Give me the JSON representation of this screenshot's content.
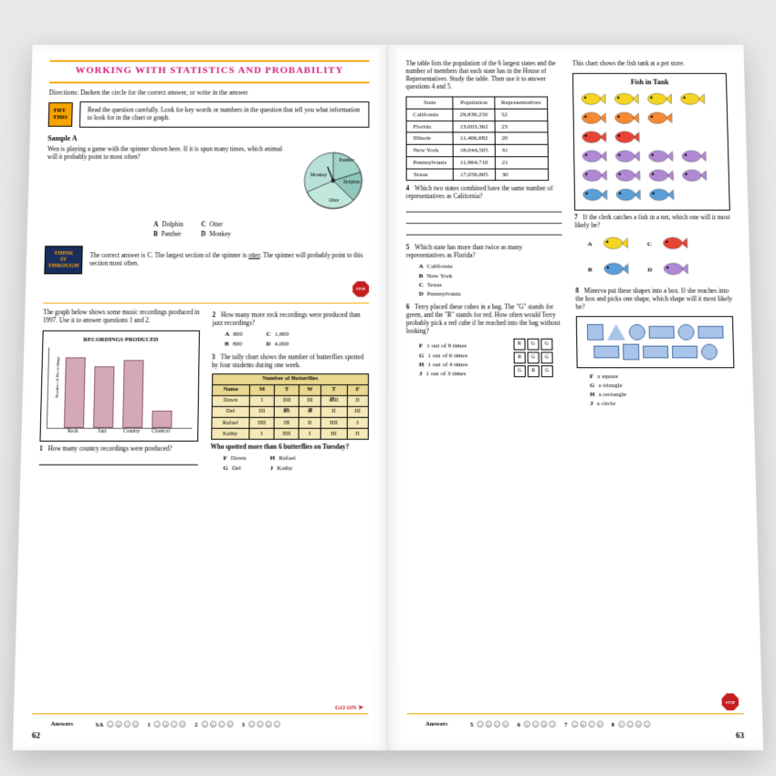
{
  "left": {
    "title": "WORKING WITH STATISTICS AND PROBABILITY",
    "directions": "Directions: Darken the circle for the correct answer, or write in the answer",
    "try_label": "TRY\nTHIS",
    "try_text": "Read the question carefully. Look for key words or numbers in the question that tell you what information to look for in the chart or graph.",
    "sample_label": "Sample A",
    "sample_text": "Wen is playing a game with the spinner shown here. If it is spun many times, which animal will it probably point to most often?",
    "spinner": {
      "colors": [
        "#b8e0d8",
        "#a0d4c8",
        "#90c8bc",
        "#c0e8dc"
      ],
      "labels": [
        "Panther",
        "Dolphin",
        "Otter",
        "Monkey"
      ]
    },
    "sample_opts": {
      "A": "Dolphin",
      "B": "Panther",
      "C": "Otter",
      "D": "Monkey"
    },
    "think_label": "THINK\nIT\nTHROUGH",
    "think_text": "The correct answer is C. The largest section of the spinner is otter. The spinner will probably point to this section most often.",
    "graph_intro": "The graph below shows some music recordings produced in 1997. Use it to answer questions 1 and 2.",
    "chart": {
      "title": "RECORDINGS PRODUCED",
      "y_label": "Number of Recordings",
      "categories": [
        "Rock",
        "Jazz",
        "Country",
        "Classical"
      ],
      "values": [
        4600,
        4000,
        4400,
        1100
      ],
      "ymax": 5000,
      "bar_color": "#d4a8b8"
    },
    "q1": "How many country recordings were produced?",
    "q2": "How many more rock recordings were produced than jazz recordings?",
    "q2_opts": {
      "A": "600",
      "B": "800",
      "C": "1,600",
      "D": "4,000"
    },
    "q3_intro": "The tally chart shows the number of butterflies spotted by four students during one week.",
    "tally": {
      "title": "Number of Butterflies",
      "cols": [
        "Name",
        "M",
        "T",
        "W",
        "T",
        "F"
      ],
      "rows": [
        [
          "Dawn",
          "I",
          "IIII",
          "III",
          "𝍸II",
          "II"
        ],
        [
          "Del",
          "III",
          "𝍸I",
          "𝍸",
          "II",
          "III"
        ],
        [
          "Rafael",
          "IIII",
          "III",
          "II",
          "IIII",
          "I"
        ],
        [
          "Kathy",
          "I",
          "IIII",
          "I",
          "III",
          "II"
        ]
      ]
    },
    "q3": "Who spotted more than 6 butterflies on Tuesday?",
    "q3_opts": {
      "F": "Dawn",
      "G": "Del",
      "H": "Rafael",
      "J": "Kathy"
    },
    "go_on": "GO ON ➤",
    "answers_label": "Answers",
    "answers": [
      "SA",
      "1",
      "2",
      "3"
    ],
    "page_num": "62"
  },
  "right": {
    "intro": "The table lists the population of the 6 largest states and the number of members that each state has in the House of Representatives. Study the table. Then use it to answer questions 4 and 5.",
    "table": {
      "cols": [
        "State",
        "Population",
        "Representatives"
      ],
      "rows": [
        [
          "California",
          "29,839,250",
          "52"
        ],
        [
          "Florida",
          "13,003,362",
          "23"
        ],
        [
          "Illinois",
          "11,466,682",
          "20"
        ],
        [
          "New York",
          "18,044,505",
          "31"
        ],
        [
          "Pennsylvania",
          "11,964,710",
          "21"
        ],
        [
          "Texas",
          "17,059,805",
          "30"
        ]
      ]
    },
    "q4": "Which two states combined have the same number of representatives as California?",
    "q5": "Which state has more than twice as many representatives as Florida?",
    "q5_opts": {
      "A": "California",
      "B": "New York",
      "C": "Texas",
      "D": "Pennsylvania"
    },
    "q6": "Terry placed these cubes in a bag. The \"G\" stands for green, and the \"R\" stands for red. How often would Terry probably pick a red cube if he reached into the bag without looking?",
    "q6_opts": {
      "F": "1 out of 9 times",
      "G": "1 out of 6 times",
      "H": "1 out of 4 times",
      "J": "1 out of 3 times"
    },
    "cubes": [
      "R",
      "G",
      "G",
      "R",
      "G",
      "G",
      "G",
      "R",
      "G"
    ],
    "fish_intro": "This chart shows the fish tank at a pet store.",
    "fish_title": "Fish in Tank",
    "fish_rows": [
      [
        "yellow",
        "yellow",
        "yellow",
        "yellow"
      ],
      [
        "orange",
        "orange",
        "orange"
      ],
      [
        "red",
        "red"
      ],
      [
        "purple",
        "purple",
        "purple",
        "purple"
      ],
      [
        "purple",
        "purple",
        "purple",
        "purple"
      ],
      [
        "blue",
        "blue",
        "blue"
      ]
    ],
    "fish_colors": {
      "yellow": "#f5d422",
      "orange": "#f58934",
      "red": "#e84434",
      "purple": "#b088d4",
      "blue": "#5c9ed8"
    },
    "q7": "If the clerk catches a fish in a net, which one will it most likely be?",
    "q7_opts": [
      "A",
      "B",
      "C",
      "D"
    ],
    "q7_opt_colors": [
      "#f5d422",
      "#5c9ed8",
      "#e84434",
      "#b088d4"
    ],
    "q8": "Minerva put these shapes into a box. If she reaches into the box and picks one shape, which shape will it most likely be?",
    "q8_shapes": [
      "sq",
      "tri",
      "circ",
      "rect",
      "circ",
      "rect",
      "rect",
      "sq",
      "rect",
      "rect",
      "circ"
    ],
    "q8_opts": {
      "F": "a square",
      "G": "a triangle",
      "H": "a rectangle",
      "J": "a circle"
    },
    "answers_label": "Answers",
    "answers": [
      "5",
      "6",
      "7",
      "8"
    ],
    "page_num": "63"
  }
}
